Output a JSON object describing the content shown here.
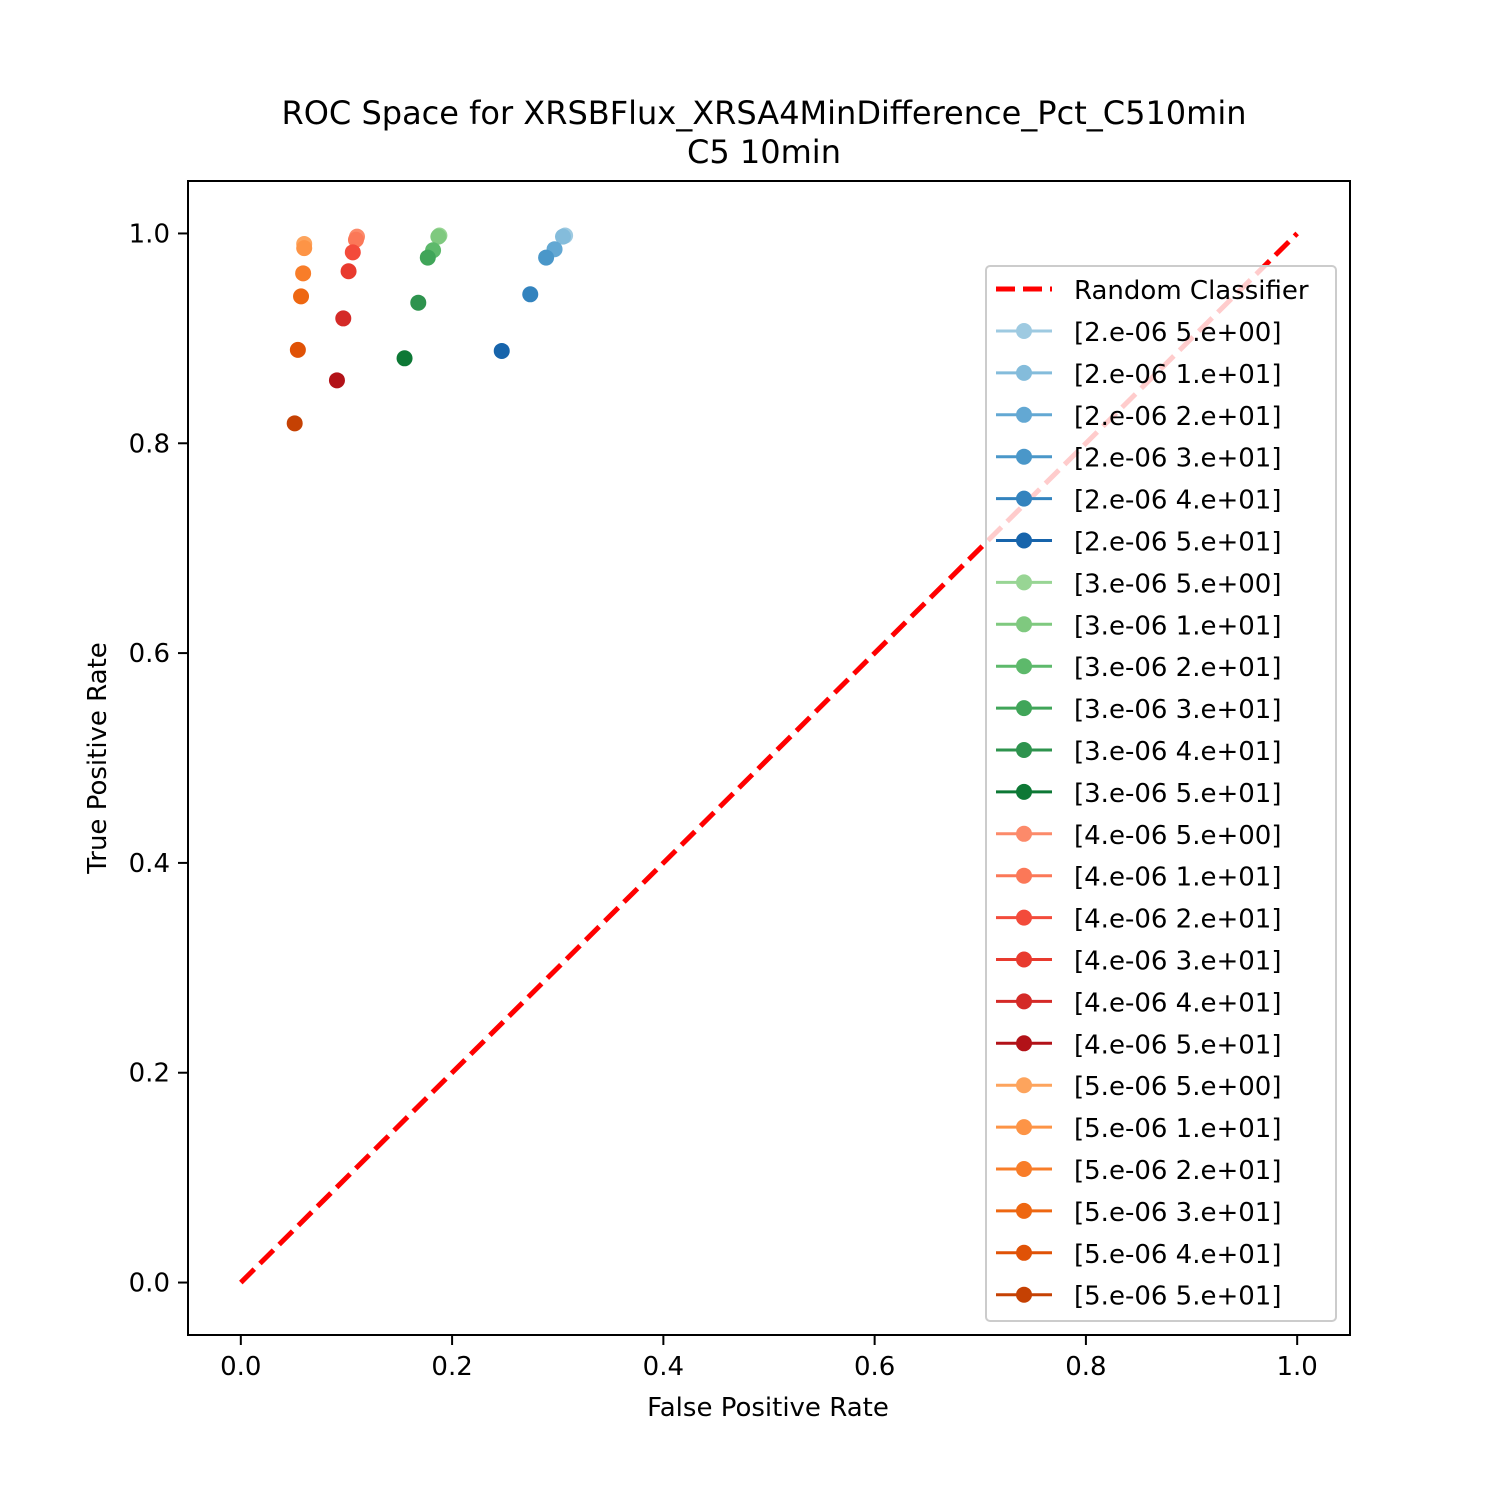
{
  "chart_data": {
    "type": "scatter",
    "title": "ROC Space for XRSBFlux_XRSA4MinDifference_Pct_C510min",
    "subtitle": "C5 10min",
    "xlabel": "False Positive Rate",
    "ylabel": "True Positive Rate",
    "xlim": [
      -0.05,
      1.05
    ],
    "ylim": [
      -0.05,
      1.05
    ],
    "xticks": [
      "0.0",
      "0.2",
      "0.4",
      "0.6",
      "0.8",
      "1.0"
    ],
    "yticks": [
      "0.0",
      "0.2",
      "0.4",
      "0.6",
      "0.8",
      "1.0"
    ],
    "grid": false,
    "legend_position": "right",
    "reference_line": {
      "name": "Random Classifier",
      "x": [
        0,
        1
      ],
      "y": [
        0,
        1
      ],
      "color": "#ff0000",
      "style": "dashed"
    },
    "series": [
      {
        "name": "[2.e-06 5.e+00]",
        "color": "#9ecae1",
        "x": 0.307,
        "y": 0.998
      },
      {
        "name": "[2.e-06 1.e+01]",
        "color": "#84bcdb",
        "x": 0.305,
        "y": 0.997
      },
      {
        "name": "[2.e-06 2.e+01]",
        "color": "#63a8d3",
        "x": 0.297,
        "y": 0.985
      },
      {
        "name": "[2.e-06 3.e+01]",
        "color": "#4a97c9",
        "x": 0.289,
        "y": 0.977
      },
      {
        "name": "[2.e-06 4.e+01]",
        "color": "#3383be",
        "x": 0.274,
        "y": 0.942
      },
      {
        "name": "[2.e-06 5.e+01]",
        "color": "#1764ab",
        "x": 0.247,
        "y": 0.888
      },
      {
        "name": "[3.e-06 5.e+00]",
        "color": "#98d594",
        "x": 0.188,
        "y": 0.998
      },
      {
        "name": "[3.e-06 1.e+01]",
        "color": "#7fc97f",
        "x": 0.187,
        "y": 0.997
      },
      {
        "name": "[3.e-06 2.e+01]",
        "color": "#5db96b",
        "x": 0.182,
        "y": 0.984
      },
      {
        "name": "[3.e-06 3.e+01]",
        "color": "#40a559",
        "x": 0.177,
        "y": 0.977
      },
      {
        "name": "[3.e-06 4.e+01]",
        "color": "#2e934e",
        "x": 0.168,
        "y": 0.934
      },
      {
        "name": "[3.e-06 5.e+01]",
        "color": "#0d7835",
        "x": 0.155,
        "y": 0.881
      },
      {
        "name": "[4.e-06 5.e+00]",
        "color": "#fc8a6a",
        "x": 0.11,
        "y": 0.997
      },
      {
        "name": "[4.e-06 1.e+01]",
        "color": "#fb7858",
        "x": 0.109,
        "y": 0.994
      },
      {
        "name": "[4.e-06 2.e+01]",
        "color": "#f34b3b",
        "x": 0.106,
        "y": 0.982
      },
      {
        "name": "[4.e-06 3.e+01]",
        "color": "#e83a2e",
        "x": 0.102,
        "y": 0.964
      },
      {
        "name": "[4.e-06 4.e+01]",
        "color": "#d42a27",
        "x": 0.097,
        "y": 0.919
      },
      {
        "name": "[4.e-06 5.e+01]",
        "color": "#b21218",
        "x": 0.091,
        "y": 0.86
      },
      {
        "name": "[5.e-06 5.e+00]",
        "color": "#fda45d",
        "x": 0.06,
        "y": 0.99
      },
      {
        "name": "[5.e-06 1.e+01]",
        "color": "#fd9446",
        "x": 0.06,
        "y": 0.986
      },
      {
        "name": "[5.e-06 2.e+01]",
        "color": "#f87d29",
        "x": 0.059,
        "y": 0.962
      },
      {
        "name": "[5.e-06 3.e+01]",
        "color": "#ee6711",
        "x": 0.057,
        "y": 0.94
      },
      {
        "name": "[5.e-06 4.e+01]",
        "color": "#e05206",
        "x": 0.054,
        "y": 0.889
      },
      {
        "name": "[5.e-06 5.e+01]",
        "color": "#c54103",
        "x": 0.051,
        "y": 0.819
      }
    ]
  }
}
